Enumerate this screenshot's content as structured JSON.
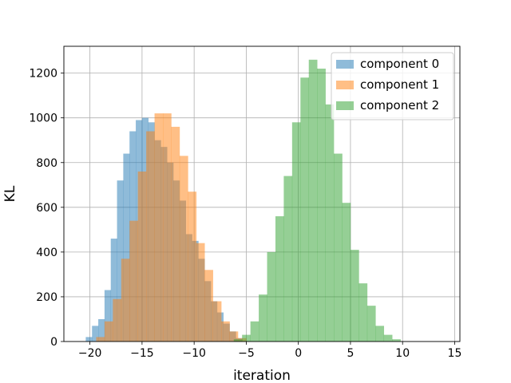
{
  "chart_data": {
    "type": "bar",
    "title": "",
    "xlabel": "iteration",
    "ylabel": "KL",
    "xlim": [
      -22.5,
      15.5
    ],
    "ylim": [
      0,
      1320
    ],
    "xticks": [
      -20,
      -15,
      -10,
      -5,
      0,
      5,
      10,
      15
    ],
    "yticks": [
      0,
      200,
      400,
      600,
      800,
      1000,
      1200
    ],
    "grid": true,
    "legend": "top-right",
    "series": [
      {
        "name": "component 0",
        "color": "#1f77b4",
        "opacity": 0.5,
        "bins": [
          [
            -20.4,
            -19.8,
            20
          ],
          [
            -19.8,
            -19.2,
            70
          ],
          [
            -19.2,
            -18.6,
            100
          ],
          [
            -18.6,
            -18.0,
            230
          ],
          [
            -18.0,
            -17.4,
            460
          ],
          [
            -17.4,
            -16.8,
            720
          ],
          [
            -16.8,
            -16.2,
            840
          ],
          [
            -16.2,
            -15.6,
            940
          ],
          [
            -15.6,
            -15.0,
            990
          ],
          [
            -15.0,
            -14.4,
            1000
          ],
          [
            -14.4,
            -13.8,
            980
          ],
          [
            -13.8,
            -13.2,
            900
          ],
          [
            -13.2,
            -12.6,
            870
          ],
          [
            -12.6,
            -12.0,
            800
          ],
          [
            -12.0,
            -11.4,
            720
          ],
          [
            -11.4,
            -10.8,
            630
          ],
          [
            -10.8,
            -10.2,
            480
          ],
          [
            -10.2,
            -9.6,
            450
          ],
          [
            -9.6,
            -9.0,
            370
          ],
          [
            -9.0,
            -8.4,
            270
          ],
          [
            -8.4,
            -7.8,
            180
          ],
          [
            -7.8,
            -7.2,
            130
          ],
          [
            -7.2,
            -6.6,
            80
          ],
          [
            -6.6,
            -6.0,
            45
          ],
          [
            -6.0,
            -5.4,
            15
          ]
        ]
      },
      {
        "name": "component 1",
        "color": "#ff7f0e",
        "opacity": 0.5,
        "bins": [
          [
            -19.4,
            -18.6,
            20
          ],
          [
            -18.6,
            -17.8,
            90
          ],
          [
            -17.8,
            -17.0,
            190
          ],
          [
            -17.0,
            -16.2,
            370
          ],
          [
            -16.2,
            -15.4,
            540
          ],
          [
            -15.4,
            -14.6,
            760
          ],
          [
            -14.6,
            -13.8,
            940
          ],
          [
            -13.8,
            -13.0,
            1020
          ],
          [
            -13.0,
            -12.2,
            1020
          ],
          [
            -12.2,
            -11.4,
            960
          ],
          [
            -11.4,
            -10.6,
            830
          ],
          [
            -10.6,
            -9.8,
            670
          ],
          [
            -9.8,
            -9.0,
            440
          ],
          [
            -9.0,
            -8.2,
            320
          ],
          [
            -8.2,
            -7.4,
            180
          ],
          [
            -7.4,
            -6.6,
            90
          ],
          [
            -6.6,
            -5.8,
            45
          ],
          [
            -5.8,
            -5.0,
            15
          ]
        ]
      },
      {
        "name": "component 2",
        "color": "#2ca02c",
        "opacity": 0.5,
        "bins": [
          [
            -6.2,
            -5.4,
            10
          ],
          [
            -5.4,
            -4.6,
            30
          ],
          [
            -4.6,
            -3.8,
            90
          ],
          [
            -3.8,
            -3.0,
            210
          ],
          [
            -3.0,
            -2.2,
            400
          ],
          [
            -2.2,
            -1.4,
            560
          ],
          [
            -1.4,
            -0.6,
            740
          ],
          [
            -0.6,
            0.2,
            980
          ],
          [
            0.2,
            1.0,
            1180
          ],
          [
            1.0,
            1.8,
            1260
          ],
          [
            1.8,
            2.6,
            1220
          ],
          [
            2.6,
            3.4,
            1060
          ],
          [
            3.4,
            4.2,
            840
          ],
          [
            4.2,
            5.0,
            620
          ],
          [
            5.0,
            5.8,
            410
          ],
          [
            5.8,
            6.6,
            260
          ],
          [
            6.6,
            7.4,
            160
          ],
          [
            7.4,
            8.2,
            70
          ],
          [
            8.2,
            9.0,
            30
          ],
          [
            9.0,
            9.8,
            10
          ]
        ]
      }
    ]
  }
}
